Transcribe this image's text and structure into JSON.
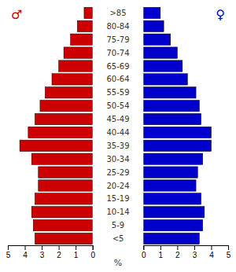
{
  "chart_data": {
    "type": "bar",
    "orientation": "horizontal",
    "categories": [
      "<5",
      "5-9",
      "10-14",
      "15-19",
      "20-24",
      "25-29",
      "30-34",
      "35-39",
      "40-44",
      "45-49",
      "50-54",
      "55-59",
      "60-64",
      "65-69",
      "70-74",
      "75-79",
      "80-84",
      ">85"
    ],
    "series": [
      {
        "name": "♂",
        "color": "#cc0000",
        "values": [
          3.4,
          3.5,
          3.6,
          3.4,
          3.2,
          3.2,
          3.6,
          4.3,
          3.8,
          3.4,
          3.1,
          2.8,
          2.4,
          2.0,
          1.7,
          1.3,
          0.9,
          0.5
        ]
      },
      {
        "name": "♀",
        "color": "#0000cc",
        "values": [
          3.3,
          3.5,
          3.6,
          3.4,
          3.1,
          3.2,
          3.5,
          4.0,
          4.0,
          3.4,
          3.3,
          3.1,
          2.6,
          2.3,
          2.0,
          1.6,
          1.2,
          1.0
        ]
      }
    ],
    "xlabel": "%",
    "xlim": [
      0,
      5
    ],
    "xticks": [
      0,
      1,
      2,
      3,
      4,
      5
    ],
    "grid": false
  }
}
